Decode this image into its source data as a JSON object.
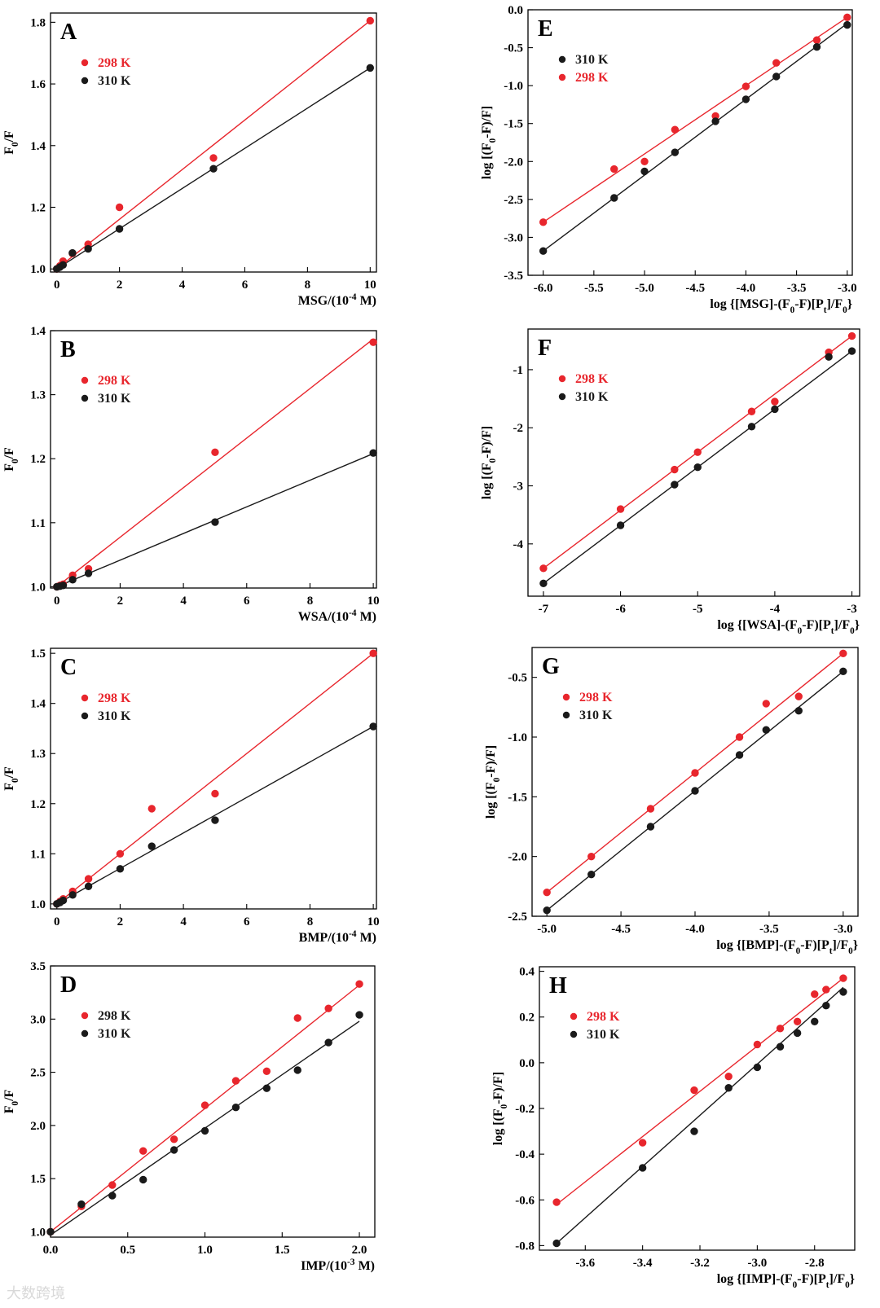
{
  "watermark": "大数跨境",
  "colors": {
    "red": "#e8262d",
    "black": "#1a1a1a",
    "line_red": "#e8262d",
    "line_black": "#111111"
  },
  "chart_data": [
    {
      "id": "A",
      "type": "scatter",
      "label": "A",
      "xlabel": "MSG/(10",
      "xlabel_sup": "-4",
      "xlabel_tail": " M)",
      "ylabel": "F0/F",
      "xlim": [
        -0.2,
        10.2
      ],
      "ylim": [
        0.99,
        1.83
      ],
      "xticks": [
        0,
        2,
        4,
        6,
        8,
        10
      ],
      "xtick_labels": [
        "0",
        "2",
        "4",
        "6",
        "8",
        "10"
      ],
      "yticks": [
        1.0,
        1.2,
        1.4,
        1.6,
        1.8
      ],
      "ytick_labels": [
        "1.0",
        "1.2",
        "1.4",
        "1.6",
        "1.8"
      ],
      "legend": [
        {
          "name": "298 K",
          "color": "red",
          "text_color": "red"
        },
        {
          "name": "310 K",
          "color": "black",
          "text_color": "black"
        }
      ],
      "legend_position": "upper-left",
      "series": [
        {
          "name": "298 K",
          "color": "red",
          "x": [
            0,
            0.1,
            0.2,
            0.5,
            1,
            2,
            5,
            10
          ],
          "y": [
            1.0,
            1.01,
            1.025,
            1.05,
            1.08,
            1.2,
            1.36,
            1.805
          ],
          "fit": [
            [
              0,
              1.0
            ],
            [
              10,
              1.805
            ]
          ]
        },
        {
          "name": "310 K",
          "color": "black",
          "x": [
            0,
            0.1,
            0.2,
            0.5,
            1,
            2,
            5,
            10
          ],
          "y": [
            1.0,
            1.006,
            1.013,
            1.052,
            1.065,
            1.13,
            1.325,
            1.652
          ],
          "fit": [
            [
              0,
              1.0
            ],
            [
              10,
              1.652
            ]
          ]
        }
      ]
    },
    {
      "id": "B",
      "type": "scatter",
      "label": "B",
      "xlabel": "WSA/(10",
      "xlabel_sup": "-4",
      "xlabel_tail": " M)",
      "ylabel": "F0/F",
      "xlim": [
        -0.2,
        10.1
      ],
      "ylim": [
        0.998,
        1.4
      ],
      "xticks": [
        0,
        2,
        4,
        6,
        8,
        10
      ],
      "xtick_labels": [
        "0",
        "2",
        "4",
        "6",
        "8",
        "10"
      ],
      "yticks": [
        1.0,
        1.1,
        1.2,
        1.3,
        1.4
      ],
      "ytick_labels": [
        "1.0",
        "1.1",
        "1.2",
        "1.3",
        "1.4"
      ],
      "legend": [
        {
          "name": "298 K",
          "color": "red",
          "text_color": "red"
        },
        {
          "name": "310 K",
          "color": "black",
          "text_color": "black"
        }
      ],
      "legend_position": "upper-left",
      "series": [
        {
          "name": "298 K",
          "color": "red",
          "x": [
            0,
            0.1,
            0.2,
            0.5,
            1,
            5,
            10
          ],
          "y": [
            1.0,
            1.002,
            1.004,
            1.018,
            1.028,
            1.21,
            1.382
          ],
          "fit": [
            [
              0,
              1.0
            ],
            [
              10,
              1.387
            ]
          ]
        },
        {
          "name": "310 K",
          "color": "black",
          "x": [
            0,
            0.1,
            0.2,
            0.5,
            1,
            5,
            10
          ],
          "y": [
            1.0,
            1.001,
            1.002,
            1.011,
            1.021,
            1.101,
            1.209
          ],
          "fit": [
            [
              0,
              1.0
            ],
            [
              10,
              1.208
            ]
          ]
        }
      ]
    },
    {
      "id": "C",
      "type": "scatter",
      "label": "C",
      "xlabel": "BMP/(10",
      "xlabel_sup": "-4",
      "xlabel_tail": " M)",
      "ylabel": "F0/F",
      "xlim": [
        -0.2,
        10.1
      ],
      "ylim": [
        0.99,
        1.51
      ],
      "xticks": [
        0,
        2,
        4,
        6,
        8,
        10
      ],
      "xtick_labels": [
        "0",
        "2",
        "4",
        "6",
        "8",
        "10"
      ],
      "yticks": [
        1.0,
        1.1,
        1.2,
        1.3,
        1.4,
        1.5
      ],
      "ytick_labels": [
        "1.0",
        "1.1",
        "1.2",
        "1.3",
        "1.4",
        "1.5"
      ],
      "legend": [
        {
          "name": "298 K",
          "color": "red",
          "text_color": "red"
        },
        {
          "name": "310 K",
          "color": "black",
          "text_color": "black"
        }
      ],
      "legend_position": "upper-left",
      "series": [
        {
          "name": "298 K",
          "color": "red",
          "x": [
            0,
            0.1,
            0.2,
            0.5,
            1,
            2,
            3,
            5,
            10
          ],
          "y": [
            1.0,
            1.005,
            1.01,
            1.025,
            1.05,
            1.1,
            1.19,
            1.22,
            1.5
          ],
          "fit": [
            [
              0,
              1.0
            ],
            [
              10,
              1.5
            ]
          ]
        },
        {
          "name": "310 K",
          "color": "black",
          "x": [
            0,
            0.1,
            0.2,
            0.5,
            1,
            2,
            3,
            5,
            10
          ],
          "y": [
            1.0,
            1.003,
            1.007,
            1.018,
            1.035,
            1.07,
            1.115,
            1.167,
            1.354
          ],
          "fit": [
            [
              0,
              1.0
            ],
            [
              10,
              1.354
            ]
          ]
        }
      ]
    },
    {
      "id": "D",
      "type": "scatter",
      "label": "D",
      "xlabel": "IMP/(10",
      "xlabel_sup": "-3",
      "xlabel_tail": " M)",
      "ylabel": "F0/F",
      "xlim": [
        0,
        2.1
      ],
      "ylim": [
        0.95,
        3.5
      ],
      "xticks": [
        0,
        0.5,
        1.0,
        1.5,
        2.0
      ],
      "xtick_labels": [
        "0.0",
        "0.5",
        "1.0",
        "1.5",
        "2.0"
      ],
      "yticks": [
        1.0,
        1.5,
        2.0,
        2.5,
        3.0,
        3.5
      ],
      "ytick_labels": [
        "1.0",
        "1.5",
        "2.0",
        "2.5",
        "3.0",
        "3.5"
      ],
      "legend": [
        {
          "name": "298 K",
          "color": "red",
          "text_color": "black"
        },
        {
          "name": "310 K",
          "color": "black",
          "text_color": "black"
        }
      ],
      "legend_position": "upper-left",
      "series": [
        {
          "name": "298 K",
          "color": "red",
          "x": [
            0,
            0.2,
            0.4,
            0.6,
            0.8,
            1.0,
            1.2,
            1.4,
            1.6,
            1.8,
            2.0
          ],
          "y": [
            1.0,
            1.24,
            1.44,
            1.76,
            1.87,
            2.19,
            2.42,
            2.51,
            3.01,
            3.1,
            3.33
          ],
          "fit": [
            [
              0,
              1.0
            ],
            [
              2.0,
              3.32
            ]
          ]
        },
        {
          "name": "310 K",
          "color": "black",
          "x": [
            0,
            0.2,
            0.4,
            0.6,
            0.8,
            1.0,
            1.2,
            1.4,
            1.6,
            1.8,
            2.0
          ],
          "y": [
            1.0,
            1.26,
            1.34,
            1.49,
            1.77,
            1.95,
            2.17,
            2.35,
            2.52,
            2.78,
            3.04
          ],
          "fit": [
            [
              0,
              0.97
            ],
            [
              2.0,
              2.98
            ]
          ]
        }
      ]
    },
    {
      "id": "E",
      "type": "scatter",
      "label": "E",
      "xlabel": "log {[MSG]-(F0-F)[Pt]/F0}",
      "ylabel": "log [(F0-F)/F]",
      "xlim": [
        -6.15,
        -2.95
      ],
      "ylim": [
        -3.5,
        0.0
      ],
      "xticks": [
        -6.0,
        -5.5,
        -5.0,
        -4.5,
        -4.0,
        -3.5,
        -3.0
      ],
      "xtick_labels": [
        "-6.0",
        "-5.5",
        "-5.0",
        "-4.5",
        "-4.0",
        "-3.5",
        "-3.0"
      ],
      "yticks": [
        0.0,
        -0.5,
        -1.0,
        -1.5,
        -2.0,
        -2.5,
        -3.0,
        -3.5
      ],
      "ytick_labels": [
        "0.0",
        "-0.5",
        "-1.0",
        "-1.5",
        "-2.0",
        "-2.5",
        "-3.0",
        "-3.5"
      ],
      "legend": [
        {
          "name": "310 K",
          "color": "black",
          "text_color": "black"
        },
        {
          "name": "298 K",
          "color": "red",
          "text_color": "red"
        }
      ],
      "legend_position": "upper-left",
      "series": [
        {
          "name": "298 K",
          "color": "red",
          "x": [
            -6.0,
            -5.3,
            -5.0,
            -4.7,
            -4.3,
            -4.0,
            -3.7,
            -3.3,
            -3.0
          ],
          "y": [
            -2.8,
            -2.1,
            -2.0,
            -1.58,
            -1.4,
            -1.01,
            -0.7,
            -0.4,
            -0.1
          ],
          "fit": [
            [
              -6.0,
              -2.8
            ],
            [
              -3.0,
              -0.1
            ]
          ]
        },
        {
          "name": "310 K",
          "color": "black",
          "x": [
            -6.0,
            -5.3,
            -5.0,
            -4.7,
            -4.3,
            -4.0,
            -3.7,
            -3.3,
            -3.0
          ],
          "y": [
            -3.18,
            -2.48,
            -2.13,
            -1.88,
            -1.47,
            -1.18,
            -0.88,
            -0.49,
            -0.2
          ],
          "fit": [
            [
              -6.0,
              -3.18
            ],
            [
              -3.0,
              -0.18
            ]
          ]
        }
      ]
    },
    {
      "id": "F",
      "type": "scatter",
      "label": "F",
      "xlabel": "log {[WSA]-(F0-F)[Pt]/F0}",
      "ylabel": "log [(F0-F)/F]",
      "xlim": [
        -7.2,
        -2.9
      ],
      "ylim": [
        -4.9,
        -0.3
      ],
      "xticks": [
        -7,
        -6,
        -5,
        -4,
        -3
      ],
      "xtick_labels": [
        "-7",
        "-6",
        "-5",
        "-4",
        "-3"
      ],
      "yticks": [
        -1,
        -2,
        -3,
        -4
      ],
      "ytick_labels": [
        "-1",
        "-2",
        "-3",
        "-4"
      ],
      "legend": [
        {
          "name": "298 K",
          "color": "red",
          "text_color": "red"
        },
        {
          "name": "310 K",
          "color": "black",
          "text_color": "black"
        }
      ],
      "legend_position": "upper-left",
      "series": [
        {
          "name": "298 K",
          "color": "red",
          "x": [
            -7.0,
            -6.0,
            -5.3,
            -5.0,
            -4.3,
            -4.0,
            -3.3,
            -3.0
          ],
          "y": [
            -4.42,
            -3.4,
            -2.72,
            -2.42,
            -1.72,
            -1.55,
            -0.7,
            -0.42
          ],
          "fit": [
            [
              -7.0,
              -4.42
            ],
            [
              -3.0,
              -0.42
            ]
          ]
        },
        {
          "name": "310 K",
          "color": "black",
          "x": [
            -7.0,
            -6.0,
            -5.3,
            -5.0,
            -4.3,
            -4.0,
            -3.3,
            -3.0
          ],
          "y": [
            -4.68,
            -3.68,
            -2.98,
            -2.68,
            -1.98,
            -1.68,
            -0.78,
            -0.68
          ],
          "fit": [
            [
              -7.0,
              -4.68
            ],
            [
              -3.0,
              -0.68
            ]
          ]
        }
      ]
    },
    {
      "id": "G",
      "type": "scatter",
      "label": "G",
      "xlabel": "log {[BMP]-(F0-F)[Pt]/F0}",
      "ylabel": "log [(F0-F)/F]",
      "xlim": [
        -5.1,
        -2.9
      ],
      "ylim": [
        -2.5,
        -0.25
      ],
      "xticks": [
        -5.0,
        -4.5,
        -4.0,
        -3.5,
        -3.0
      ],
      "xtick_labels": [
        "-5.0",
        "-4.5",
        "-4.0",
        "-3.5",
        "-3.0"
      ],
      "yticks": [
        -0.5,
        -1.0,
        -1.5,
        -2.0,
        -2.5
      ],
      "ytick_labels": [
        "-0.5",
        "-1.0",
        "-1.5",
        "-2.0",
        "-2.5"
      ],
      "legend": [
        {
          "name": "298 K",
          "color": "red",
          "text_color": "red"
        },
        {
          "name": "310 K",
          "color": "black",
          "text_color": "black"
        }
      ],
      "legend_position": "upper-left",
      "series": [
        {
          "name": "298 K",
          "color": "red",
          "x": [
            -5.0,
            -4.7,
            -4.3,
            -4.0,
            -3.7,
            -3.52,
            -3.3,
            -3.0
          ],
          "y": [
            -2.3,
            -2.0,
            -1.6,
            -1.3,
            -1.0,
            -0.72,
            -0.66,
            -0.3
          ],
          "fit": [
            [
              -5.0,
              -2.3
            ],
            [
              -3.0,
              -0.3
            ]
          ]
        },
        {
          "name": "310 K",
          "color": "black",
          "x": [
            -5.0,
            -4.7,
            -4.3,
            -4.0,
            -3.7,
            -3.52,
            -3.3,
            -3.0
          ],
          "y": [
            -2.45,
            -2.15,
            -1.75,
            -1.45,
            -1.15,
            -0.94,
            -0.78,
            -0.45
          ],
          "fit": [
            [
              -5.0,
              -2.45
            ],
            [
              -3.0,
              -0.45
            ]
          ]
        }
      ]
    },
    {
      "id": "H",
      "type": "scatter",
      "label": "H",
      "xlabel": "log {[IMP]-(F0-F)[Pt]/F0}",
      "ylabel": "log [(F0-F)/F]",
      "xlim": [
        -3.76,
        -2.66
      ],
      "ylim": [
        -0.82,
        0.42
      ],
      "xticks": [
        -3.6,
        -3.4,
        -3.2,
        -3.0,
        -2.8
      ],
      "xtick_labels": [
        "-3.6",
        "-3.4",
        "-3.2",
        "-3.0",
        "-2.8"
      ],
      "yticks": [
        0.4,
        0.2,
        0.0,
        -0.2,
        -0.4,
        -0.6,
        -0.8
      ],
      "ytick_labels": [
        "0.4",
        "0.2",
        "0.0",
        "-0.2",
        "-0.4",
        "-0.6",
        "-0.8"
      ],
      "legend": [
        {
          "name": "298 K",
          "color": "red",
          "text_color": "red"
        },
        {
          "name": "310 K",
          "color": "black",
          "text_color": "black"
        }
      ],
      "legend_position": "upper-left",
      "series": [
        {
          "name": "298 K",
          "color": "red",
          "x": [
            -3.7,
            -3.4,
            -3.22,
            -3.1,
            -3.0,
            -2.92,
            -2.8,
            -2.86,
            -2.76,
            -2.7
          ],
          "y": [
            -0.61,
            -0.35,
            -0.12,
            -0.06,
            0.08,
            0.15,
            0.3,
            0.18,
            0.32,
            0.37
          ],
          "fit": [
            [
              -3.7,
              -0.62
            ],
            [
              -2.7,
              0.37
            ]
          ]
        },
        {
          "name": "310 K",
          "color": "black",
          "x": [
            -3.7,
            -3.4,
            -3.22,
            -3.1,
            -3.0,
            -2.92,
            -2.86,
            -2.8,
            -2.76,
            -2.7
          ],
          "y": [
            -0.79,
            -0.46,
            -0.3,
            -0.11,
            -0.02,
            0.07,
            0.13,
            0.18,
            0.25,
            0.31
          ],
          "fit": [
            [
              -3.7,
              -0.79
            ],
            [
              -2.7,
              0.33
            ]
          ]
        }
      ]
    }
  ]
}
